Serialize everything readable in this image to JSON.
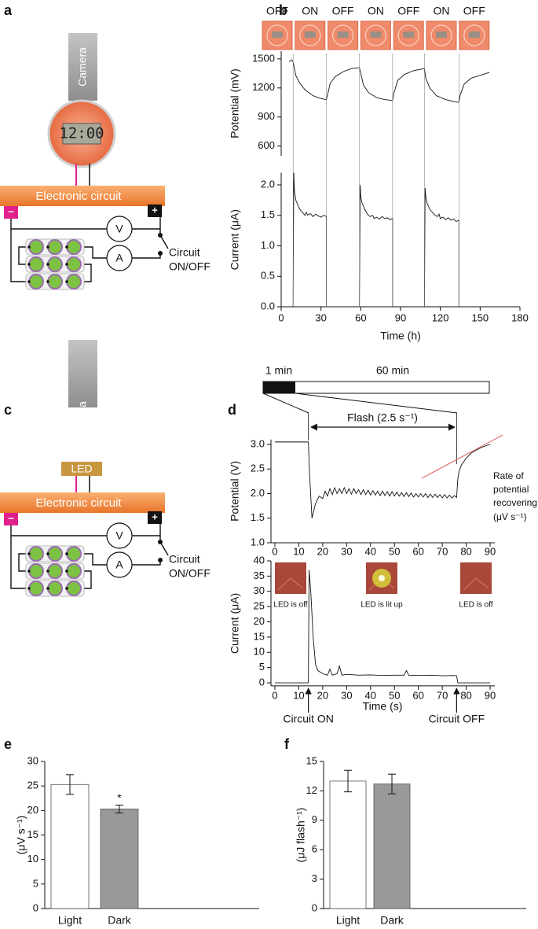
{
  "panel_labels": [
    "a",
    "b",
    "c",
    "d",
    "e",
    "f"
  ],
  "diagram_a": {
    "camera": "Camera",
    "clock": "12:00",
    "circuit": "Electronic circuit",
    "minus": "−",
    "plus": "+",
    "voltmeter": "V",
    "ammeter": "A",
    "switch_label": [
      "Circuit",
      "ON/OFF"
    ]
  },
  "diagram_c": {
    "camera": "Camera",
    "led": "LED",
    "circuit": "Electronic circuit",
    "minus": "−",
    "plus": "+",
    "voltmeter": "V",
    "ammeter": "A",
    "switch_label": [
      "Circuit",
      "ON/OFF"
    ]
  },
  "chart_data": [
    {
      "type": "line",
      "ylabel": "Potential (mV)",
      "state_labels": [
        "OFF",
        "ON",
        "OFF",
        "ON",
        "OFF",
        "ON",
        "OFF"
      ],
      "color": "#111111",
      "xlim": [
        0,
        180
      ],
      "ylim": [
        500,
        1580
      ],
      "yticks": [
        600,
        900,
        1200,
        1500
      ],
      "x": [
        6,
        8,
        9,
        11,
        14,
        18,
        24,
        30,
        34,
        35,
        37,
        41,
        47,
        53,
        59,
        60,
        62,
        66,
        72,
        78,
        84,
        85,
        88,
        93,
        100,
        108,
        109,
        112,
        117,
        124,
        130,
        134,
        135,
        138,
        143,
        150,
        157
      ],
      "values": [
        1470,
        1490,
        1470,
        1330,
        1250,
        1180,
        1120,
        1090,
        1080,
        1130,
        1250,
        1320,
        1370,
        1400,
        1410,
        1350,
        1230,
        1150,
        1100,
        1080,
        1070,
        1150,
        1280,
        1340,
        1380,
        1400,
        1300,
        1200,
        1120,
        1080,
        1060,
        1050,
        1130,
        1240,
        1300,
        1330,
        1360
      ]
    },
    {
      "type": "line",
      "ylabel": "Current (μA)",
      "xlabel": "Time (h)",
      "color": "#111111",
      "xlim": [
        0,
        180
      ],
      "xticks": [
        0,
        30,
        60,
        90,
        120,
        150,
        180
      ],
      "ylim": [
        0,
        2.2
      ],
      "yticks": [
        {
          "value": 0,
          "label": "0.0"
        },
        0.5,
        {
          "value": 1,
          "label": "1.0"
        },
        1.5,
        {
          "value": 2,
          "label": "2.0"
        }
      ],
      "switch_times": [
        9,
        34,
        59,
        84,
        108,
        134
      ],
      "x": [
        0,
        9,
        9.5,
        10,
        11,
        12,
        14,
        16,
        18,
        19,
        20,
        22,
        24,
        26,
        28,
        30,
        32,
        34,
        34,
        59,
        59.5,
        60,
        61,
        63,
        65,
        67,
        69,
        70,
        72,
        74,
        76,
        78,
        80,
        82,
        84,
        84,
        108,
        108.5,
        109,
        110,
        112,
        114,
        116,
        118,
        119,
        120,
        122,
        124,
        126,
        128,
        130,
        132,
        134,
        134
      ],
      "values": [
        0,
        0,
        2.2,
        1.9,
        1.75,
        1.7,
        1.6,
        1.55,
        1.5,
        1.55,
        1.5,
        1.53,
        1.48,
        1.52,
        1.49,
        1.47,
        1.5,
        1.48,
        0,
        0,
        2.0,
        1.8,
        1.7,
        1.6,
        1.52,
        1.48,
        1.5,
        1.45,
        1.47,
        1.44,
        1.48,
        1.45,
        1.46,
        1.43,
        1.45,
        0,
        0,
        1.95,
        1.8,
        1.7,
        1.6,
        1.55,
        1.5,
        1.48,
        1.52,
        1.45,
        1.47,
        1.43,
        1.46,
        1.42,
        1.44,
        1.4,
        1.42,
        0
      ]
    },
    {
      "type": "line",
      "ylabel": "Potential (V)",
      "timeline_labels": [
        "1 min",
        "60 min"
      ],
      "flash_label": "Flash (2.5 s⁻¹)",
      "annotation": [
        "Rate of",
        "potential",
        "recovering",
        "(μV s⁻¹)"
      ],
      "color": "#111111",
      "xlim": [
        0,
        90
      ],
      "xticks": [
        0,
        10,
        20,
        30,
        40,
        50,
        60,
        70,
        80,
        90
      ],
      "ylim": [
        1.0,
        3.1
      ],
      "yticks": [
        {
          "value": 1,
          "label": "1.0"
        },
        1.5,
        {
          "value": 2,
          "label": "2.0"
        },
        2.5,
        {
          "value": 3,
          "label": "3.0"
        }
      ],
      "x": [
        0,
        14,
        14.5,
        15.5,
        17,
        18.5,
        20,
        21,
        22,
        23,
        24,
        25,
        26,
        27,
        28,
        29,
        30,
        31,
        32,
        33,
        34,
        35,
        36,
        37,
        38,
        39,
        40,
        41,
        42,
        43,
        44,
        45,
        46,
        47,
        48,
        49,
        50,
        51,
        52,
        53,
        54,
        55,
        56,
        57,
        58,
        59,
        60,
        61,
        62,
        63,
        64,
        65,
        66,
        67,
        68,
        69,
        70,
        71,
        72,
        73,
        74,
        75,
        76,
        76.5,
        77,
        78,
        80,
        82,
        84,
        86,
        88,
        90
      ],
      "values": [
        3.05,
        3.05,
        2.4,
        1.5,
        1.8,
        1.95,
        1.9,
        2.05,
        1.95,
        2.1,
        1.98,
        2.12,
        2.0,
        2.1,
        2.0,
        2.12,
        2.0,
        2.1,
        1.99,
        2.1,
        2.0,
        2.08,
        1.98,
        2.08,
        1.98,
        2.07,
        1.97,
        2.06,
        1.97,
        2.05,
        1.96,
        2.05,
        1.96,
        2.04,
        1.95,
        2.04,
        1.95,
        2.03,
        1.95,
        2.02,
        1.94,
        2.02,
        1.94,
        2.01,
        1.93,
        2.0,
        1.93,
        2.0,
        1.93,
        2.0,
        1.92,
        1.99,
        1.92,
        1.99,
        1.92,
        1.98,
        1.91,
        1.98,
        1.91,
        1.97,
        1.91,
        1.96,
        1.92,
        2.3,
        2.45,
        2.58,
        2.72,
        2.82,
        2.88,
        2.93,
        2.97,
        3.0
      ]
    },
    {
      "type": "line",
      "ylabel": "Current (μA)",
      "xlabel": "Time (s)",
      "image_captions": [
        "LED is off",
        "LED is lit up",
        "LED is off"
      ],
      "events": [
        "Circuit ON",
        "Circuit OFF"
      ],
      "event_times": [
        14,
        76
      ],
      "color": "#111111",
      "xlim": [
        0,
        90
      ],
      "xticks": [
        0,
        10,
        20,
        30,
        40,
        50,
        60,
        70,
        80,
        90
      ],
      "ylim": [
        -1,
        40
      ],
      "yticks": [
        0,
        5,
        10,
        15,
        20,
        25,
        30,
        35,
        40
      ],
      "x": [
        0,
        14,
        14.3,
        15,
        16,
        17,
        18,
        20,
        22,
        23,
        24,
        26,
        27,
        28,
        30,
        35,
        40,
        45,
        50,
        54,
        55,
        56,
        60,
        65,
        70,
        75,
        76,
        76.5,
        80,
        90
      ],
      "values": [
        0,
        0,
        37,
        30,
        15,
        6,
        4,
        3,
        2.5,
        4.5,
        2.5,
        3,
        5.5,
        2.5,
        2.8,
        2.5,
        2.6,
        2.4,
        2.5,
        2.5,
        4,
        2.5,
        2.4,
        2.5,
        2.3,
        2.4,
        2.3,
        0,
        0,
        0
      ]
    },
    {
      "type": "bar",
      "ylabel": "(μV s⁻¹)",
      "categories": [
        "Light",
        "Dark"
      ],
      "values": [
        25.3,
        20.3
      ],
      "errors": [
        2.0,
        0.8
      ],
      "colors": [
        "#ffffff",
        "#999999"
      ],
      "value_annotations": [
        null,
        "*"
      ],
      "ylim": [
        0,
        30
      ],
      "yticks": [
        0,
        5,
        10,
        15,
        20,
        25,
        30
      ]
    },
    {
      "type": "bar",
      "ylabel": "(μJ flash⁻¹)",
      "categories": [
        "Light",
        "Dark"
      ],
      "values": [
        13.0,
        12.7
      ],
      "errors": [
        1.1,
        1.0
      ],
      "colors": [
        "#ffffff",
        "#999999"
      ],
      "ylim": [
        0,
        15
      ],
      "yticks": [
        0,
        3,
        6,
        9,
        12,
        15
      ]
    }
  ]
}
